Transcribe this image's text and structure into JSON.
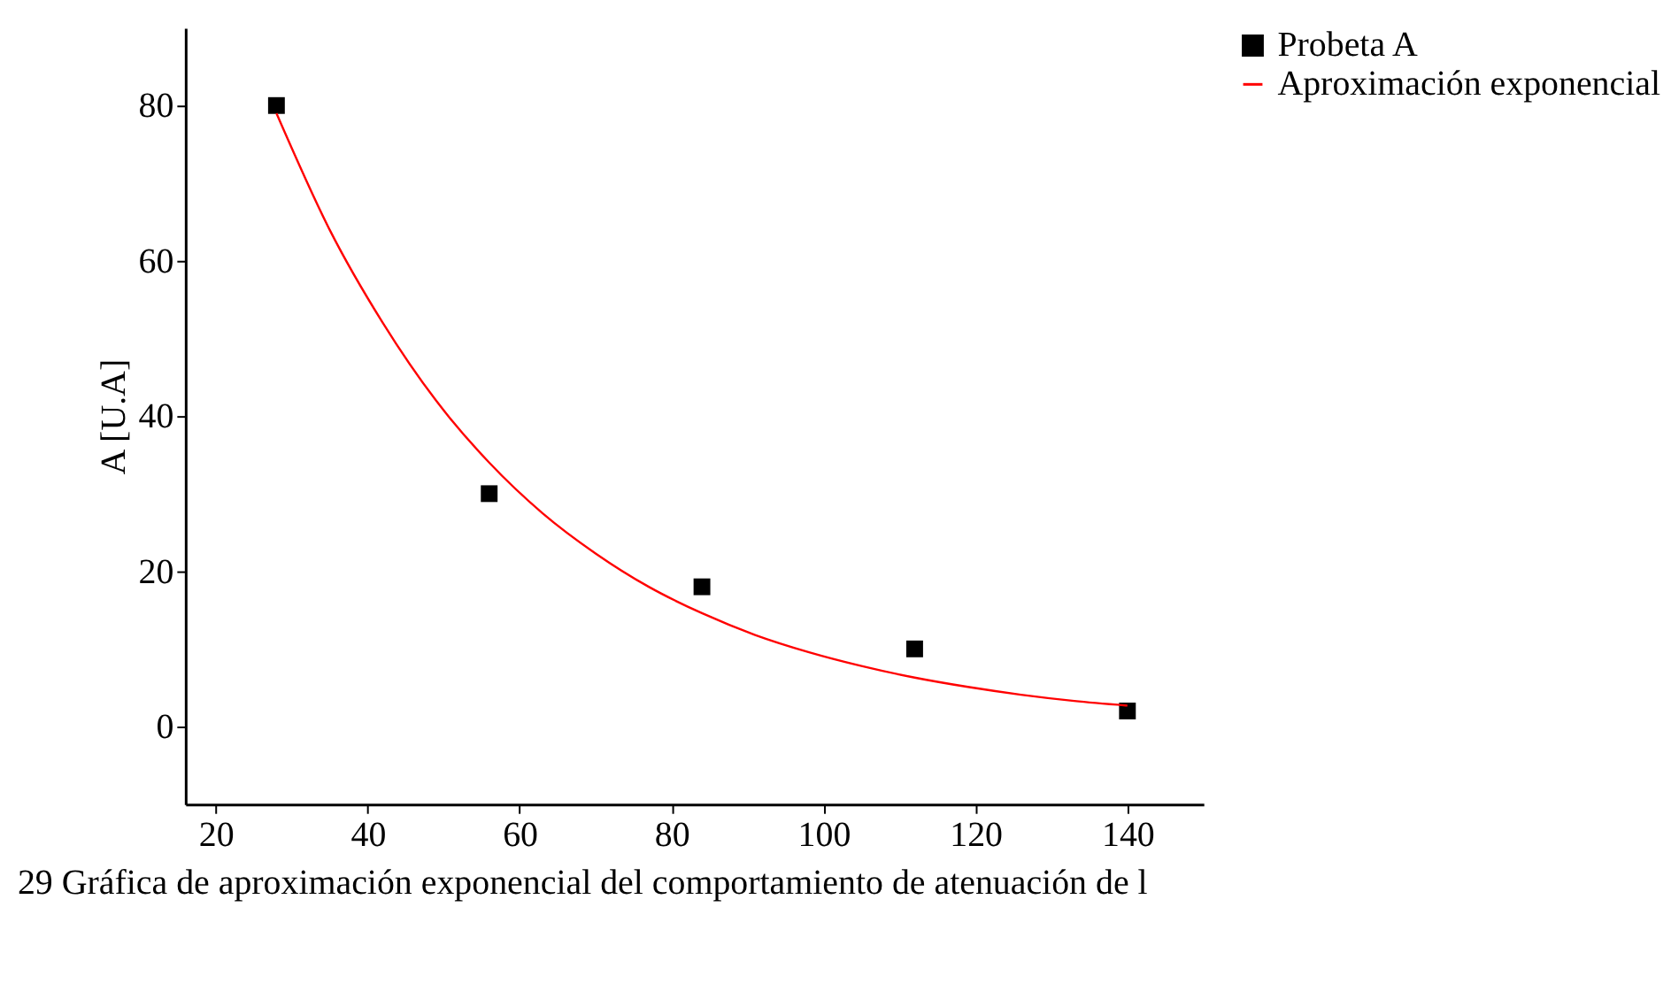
{
  "chart_data": {
    "type": "scatter",
    "ylabel": "A [U.A]",
    "annotations": [
      "29 Gráfica de aproximación exponencial del  comportamiento de atenuación de l"
    ],
    "xlim": [
      16,
      150
    ],
    "xticks": [
      20,
      40,
      60,
      80,
      100,
      120,
      140
    ],
    "ylim": [
      -10,
      90
    ],
    "yticks": [
      0,
      20,
      40,
      60,
      80
    ],
    "grid": false,
    "legend": "top right",
    "series": [
      {
        "name": "Probeta A",
        "type": "scatter",
        "marker": "square",
        "color": "#000000",
        "x": [
          28,
          56,
          84,
          112,
          140
        ],
        "values": [
          80,
          30,
          18,
          10,
          2
        ]
      },
      {
        "name": "Aproximación exponencial",
        "type": "line",
        "marker": "none",
        "line_style": "solid",
        "color": "#ff0000",
        "x": [
          28,
          35,
          42,
          49,
          56,
          63,
          70,
          77,
          84,
          91,
          98,
          105,
          112,
          119,
          126,
          133,
          140
        ],
        "values": [
          79,
          64,
          52,
          42,
          34,
          27.5,
          22.3,
          18,
          14.6,
          11.8,
          9.6,
          7.8,
          6.3,
          5.1,
          4.1,
          3.3,
          2.7
        ]
      }
    ]
  }
}
